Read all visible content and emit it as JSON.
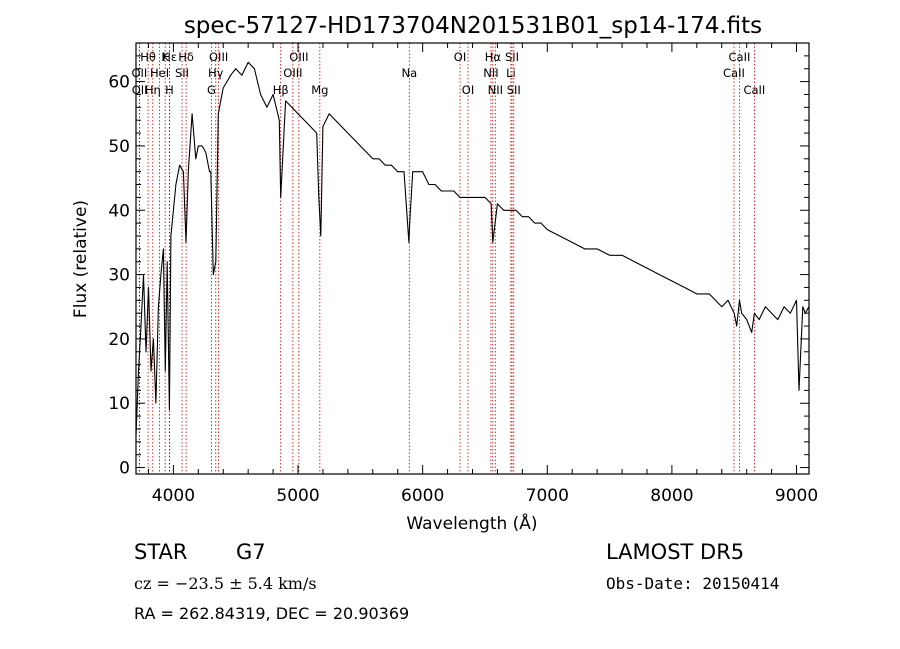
{
  "chart_data": {
    "type": "line",
    "title": "spec-57127-HD173704N201531B01_sp14-174.fits",
    "xlabel": "Wavelength (Å)",
    "ylabel": "Flux (relative)",
    "xlim": [
      3700,
      9100
    ],
    "ylim": [
      -1,
      66
    ],
    "xticks": [
      4000,
      5000,
      6000,
      7000,
      8000,
      9000
    ],
    "yticks": [
      0,
      10,
      20,
      30,
      40,
      50,
      60
    ],
    "grid": false,
    "series": [
      {
        "color": "#000000",
        "x": [
          3700,
          3720,
          3740,
          3760,
          3780,
          3800,
          3820,
          3840,
          3860,
          3880,
          3900,
          3920,
          3935,
          3950,
          3968,
          3980,
          4000,
          4020,
          4050,
          4080,
          4101,
          4120,
          4150,
          4180,
          4200,
          4230,
          4260,
          4290,
          4300,
          4320,
          4340,
          4360,
          4380,
          4400,
          4430,
          4460,
          4500,
          4550,
          4600,
          4650,
          4700,
          4750,
          4800,
          4850,
          4861,
          4900,
          4950,
          5000,
          5050,
          5100,
          5150,
          5167,
          5183,
          5200,
          5250,
          5300,
          5350,
          5400,
          5450,
          5500,
          5550,
          5600,
          5650,
          5700,
          5750,
          5800,
          5850,
          5890,
          5896,
          5920,
          5950,
          6000,
          6050,
          6100,
          6150,
          6200,
          6250,
          6300,
          6350,
          6400,
          6450,
          6500,
          6550,
          6563,
          6600,
          6650,
          6700,
          6750,
          6800,
          6850,
          6900,
          6950,
          7000,
          7100,
          7200,
          7300,
          7400,
          7500,
          7600,
          7700,
          7800,
          7900,
          8000,
          8100,
          8200,
          8300,
          8400,
          8450,
          8500,
          8520,
          8542,
          8560,
          8600,
          8640,
          8662,
          8700,
          8750,
          8800,
          8850,
          8900,
          8950,
          9000,
          9020,
          9050,
          9070,
          9100
        ],
        "y": [
          5,
          15,
          22,
          30,
          18,
          28,
          15,
          20,
          10,
          25,
          30,
          34,
          15,
          32,
          9,
          36,
          40,
          44,
          47,
          46,
          35,
          46,
          55,
          48,
          50,
          50,
          49,
          46,
          46,
          30,
          32,
          55,
          57,
          59,
          60,
          61,
          62,
          61,
          63,
          62,
          58,
          56,
          58,
          54,
          42,
          57,
          56,
          55,
          54,
          53,
          52,
          42,
          36,
          53,
          55,
          54,
          53,
          52,
          51,
          50,
          49,
          48,
          48,
          47,
          47,
          46,
          46,
          35,
          38,
          46,
          46,
          46,
          44,
          44,
          43,
          43,
          43,
          42,
          42,
          42,
          42,
          42,
          41,
          35,
          41,
          40,
          40,
          40,
          39,
          39,
          38,
          38,
          37,
          36,
          35,
          34,
          34,
          33,
          33,
          32,
          31,
          30,
          29,
          28,
          27,
          27,
          25,
          26,
          24,
          22,
          26,
          24,
          23,
          21,
          24,
          23,
          25,
          24,
          23,
          25,
          24,
          26,
          12,
          25,
          24,
          25
        ]
      }
    ],
    "lines": [
      {
        "label": "Hε",
        "x": 3970,
        "row": 0
      },
      {
        "label": "Hθ",
        "x": 3797,
        "row": 0
      },
      {
        "label": "K",
        "x": 3934,
        "row": 0
      },
      {
        "label": "Hδ",
        "x": 4102,
        "row": 0
      },
      {
        "label": "OIII",
        "x": 4363,
        "row": 0
      },
      {
        "label": "OIII",
        "x": 5007,
        "row": 0
      },
      {
        "label": "OI",
        "x": 6300,
        "row": 0
      },
      {
        "label": "Hα",
        "x": 6563,
        "row": 0
      },
      {
        "label": "SII",
        "x": 6717,
        "row": 0
      },
      {
        "label": "CaII",
        "x": 8542,
        "row": 0
      },
      {
        "label": "OII",
        "x": 3727,
        "row": 1
      },
      {
        "label": "HeI",
        "x": 3889,
        "row": 1
      },
      {
        "label": "SII",
        "x": 4069,
        "row": 1
      },
      {
        "label": "Hγ",
        "x": 4340,
        "row": 1
      },
      {
        "label": "OIII",
        "x": 4959,
        "row": 1
      },
      {
        "label": "Na",
        "x": 5893,
        "row": 1
      },
      {
        "label": "NII",
        "x": 6548,
        "row": 1
      },
      {
        "label": "Li",
        "x": 6708,
        "row": 1
      },
      {
        "label": "CaII",
        "x": 8498,
        "row": 1
      },
      {
        "label": "OII",
        "x": 3729,
        "row": 2
      },
      {
        "label": "Hη",
        "x": 3835,
        "row": 2
      },
      {
        "label": "H",
        "x": 3968,
        "row": 2
      },
      {
        "label": "G",
        "x": 4305,
        "row": 2
      },
      {
        "label": "Hβ",
        "x": 4861,
        "row": 2
      },
      {
        "label": "Mg",
        "x": 5175,
        "row": 2
      },
      {
        "label": "OI",
        "x": 6364,
        "row": 2
      },
      {
        "label": "NII",
        "x": 6583,
        "row": 2
      },
      {
        "label": "SII",
        "x": 6731,
        "row": 2
      },
      {
        "label": "CaII",
        "x": 8662,
        "row": 2
      }
    ]
  },
  "info": {
    "object_class": "STAR",
    "subclass": "G7",
    "survey": "LAMOST DR5",
    "cz": "cz = −23.5 ± 5.4 km/s",
    "obs_date": "Obs-Date: 20150414",
    "coords": "RA = 262.84319, DEC =  20.90369"
  }
}
